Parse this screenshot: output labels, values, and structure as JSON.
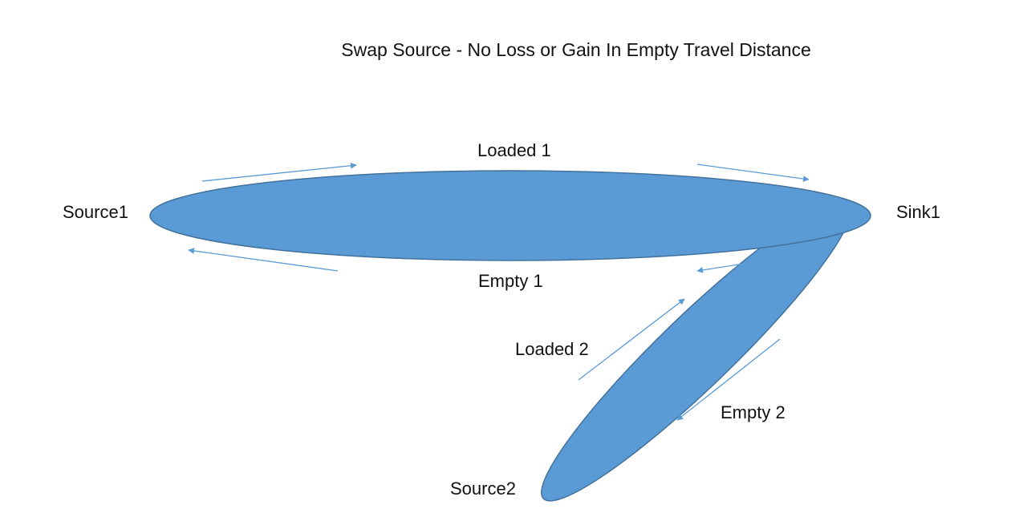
{
  "title": "Swap Source - No Loss or Gain In Empty Travel Distance",
  "nodes": {
    "source1": "Source1",
    "sink1": "Sink1",
    "source2": "Source2"
  },
  "routes": {
    "loaded1": "Loaded 1",
    "empty1": "Empty 1",
    "loaded2": "Loaded 2",
    "empty2": "Empty 2"
  },
  "colors": {
    "fill": "#5b9bd5",
    "stroke": "#41719c",
    "arrow": "#5b9bd5",
    "text": "#111111"
  }
}
